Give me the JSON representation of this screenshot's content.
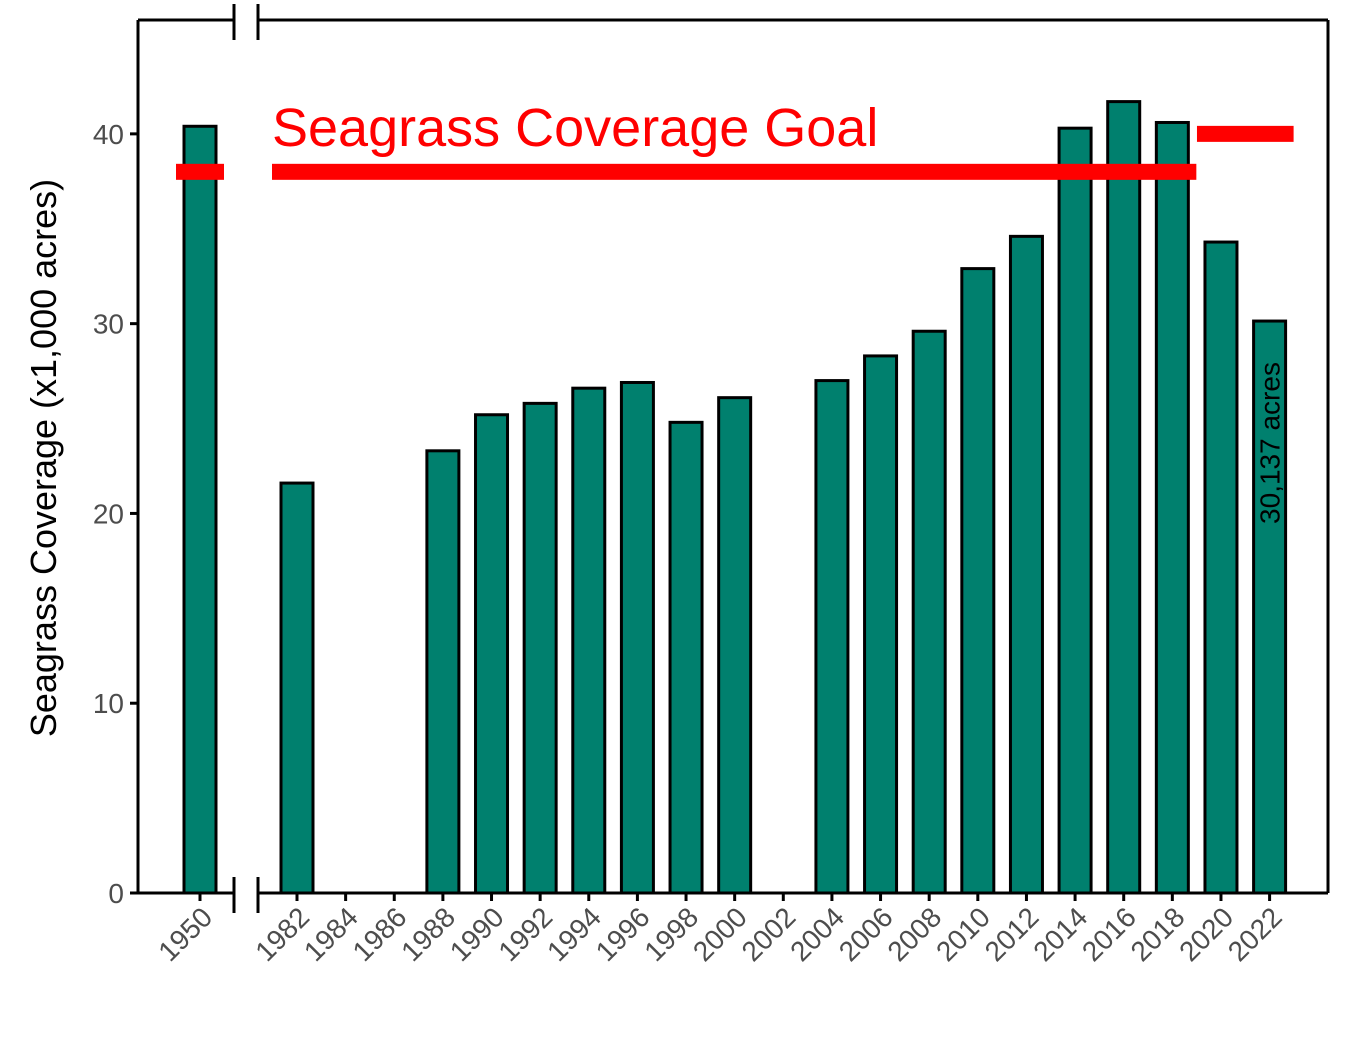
{
  "colors": {
    "bar_fill": "#00806e",
    "bar_stroke": "#000000",
    "goal": "#ff0000",
    "axis": "#000000",
    "tick_text": "#4d4d4d"
  },
  "goal_label": "Seagrass Coverage Goal",
  "chart_data": {
    "type": "bar",
    "ylabel": "Seagrass Coverage (x1,000 acres)",
    "xlabel": "",
    "ylim": [
      0,
      46
    ],
    "y_ticks": [
      0,
      10,
      20,
      30,
      40
    ],
    "axis_break_between": [
      "1950",
      "1982"
    ],
    "categories": [
      "1950",
      "1982",
      "1984",
      "1986",
      "1988",
      "1990",
      "1992",
      "1994",
      "1996",
      "1998",
      "2000",
      "2002",
      "2004",
      "2006",
      "2008",
      "2010",
      "2012",
      "2014",
      "2016",
      "2018",
      "2020",
      "2022"
    ],
    "values": [
      40.4,
      21.6,
      null,
      null,
      23.3,
      25.2,
      25.8,
      26.6,
      26.9,
      24.8,
      26.1,
      null,
      27.0,
      28.3,
      29.6,
      32.9,
      34.6,
      40.3,
      41.7,
      40.6,
      34.3,
      30.137
    ],
    "goal_segments": [
      {
        "from": "1950",
        "to": "1950",
        "value": 38
      },
      {
        "from": "1982",
        "to": "2018",
        "value": 38
      },
      {
        "from": "2020",
        "to": "2022",
        "value": 40
      }
    ],
    "annotations": [
      {
        "category": "2022",
        "text": "30,137 acres"
      }
    ],
    "grid": false,
    "legend": "none"
  }
}
